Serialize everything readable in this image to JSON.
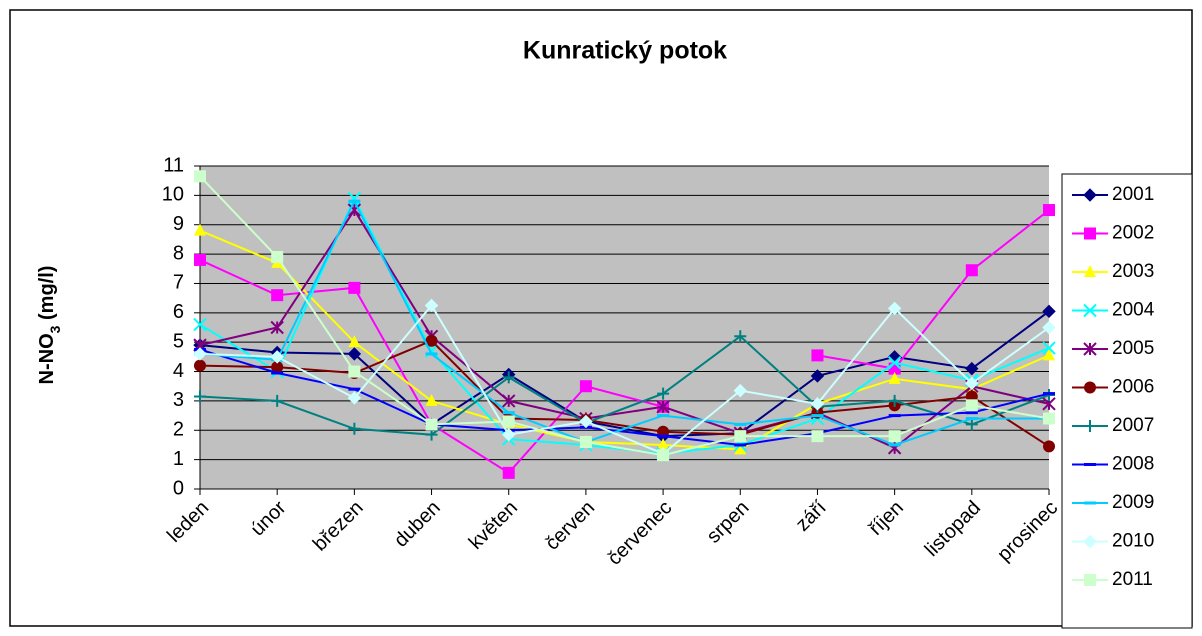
{
  "chart_data": {
    "type": "line",
    "title": "Kunratický potok",
    "y_label": [
      "N-NO",
      "3",
      " (mg/l)"
    ],
    "categories": [
      "leden",
      "únor",
      "březen",
      "duben",
      "květen",
      "červen",
      "červenec",
      "srpen",
      "září",
      "říjen",
      "listopad",
      "prosinec"
    ],
    "ylim": [
      0,
      11
    ],
    "yticks": [
      0,
      1,
      2,
      3,
      4,
      5,
      6,
      7,
      8,
      9,
      10,
      11
    ],
    "grid": true,
    "legend": "right",
    "series": [
      {
        "name": "2001",
        "color": "#000080",
        "marker": "diamond",
        "values": [
          4.9,
          4.65,
          4.6,
          2.2,
          3.9,
          2.3,
          1.8,
          1.9,
          3.85,
          4.5,
          4.1,
          6.05
        ]
      },
      {
        "name": "2002",
        "color": "#ff00ff",
        "marker": "square",
        "values": [
          7.8,
          6.6,
          6.85,
          2.2,
          0.55,
          3.5,
          2.8,
          null,
          4.55,
          4.1,
          7.45,
          9.5
        ]
      },
      {
        "name": "2003",
        "color": "#ffff00",
        "marker": "triangle",
        "values": [
          8.8,
          7.7,
          5.0,
          3.0,
          2.2,
          1.6,
          1.5,
          1.35,
          2.9,
          3.75,
          3.4,
          4.55
        ]
      },
      {
        "name": "2004",
        "color": "#00ffff",
        "marker": "x",
        "values": [
          5.6,
          4.0,
          9.9,
          4.7,
          1.7,
          1.5,
          1.2,
          1.5,
          2.4,
          4.3,
          3.7,
          4.8
        ]
      },
      {
        "name": "2005",
        "color": "#800080",
        "marker": "star",
        "values": [
          4.9,
          5.5,
          9.5,
          5.2,
          3.0,
          2.4,
          2.8,
          1.9,
          2.6,
          1.4,
          3.5,
          2.9
        ]
      },
      {
        "name": "2006",
        "color": "#800000",
        "marker": "circle",
        "values": [
          4.2,
          4.15,
          3.95,
          5.05,
          2.4,
          2.35,
          1.95,
          1.85,
          2.6,
          2.85,
          3.15,
          1.45
        ]
      },
      {
        "name": "2007",
        "color": "#008080",
        "marker": "plus",
        "values": [
          3.15,
          3.0,
          2.05,
          1.85,
          3.8,
          2.25,
          3.25,
          5.2,
          2.8,
          3.0,
          2.2,
          3.2
        ]
      },
      {
        "name": "2008",
        "color": "#0000ff",
        "marker": "dash",
        "values": [
          4.75,
          3.95,
          3.4,
          2.2,
          2.0,
          2.1,
          1.8,
          1.5,
          1.9,
          2.5,
          2.6,
          3.25
        ]
      },
      {
        "name": "2009",
        "color": "#00ccff",
        "marker": "dash",
        "values": [
          4.6,
          4.4,
          9.8,
          4.6,
          2.6,
          1.6,
          2.5,
          2.2,
          2.5,
          1.5,
          2.4,
          2.4
        ]
      },
      {
        "name": "2010",
        "color": "#ccffff",
        "marker": "diamond",
        "values": [
          4.6,
          4.5,
          3.1,
          6.25,
          1.85,
          2.3,
          1.2,
          3.35,
          2.9,
          6.15,
          3.6,
          5.5
        ]
      },
      {
        "name": "2011",
        "color": "#ccffcc",
        "marker": "square",
        "values": [
          10.65,
          7.9,
          4.0,
          2.2,
          2.3,
          1.6,
          1.15,
          1.8,
          1.8,
          1.8,
          2.85,
          2.4
        ]
      }
    ]
  }
}
